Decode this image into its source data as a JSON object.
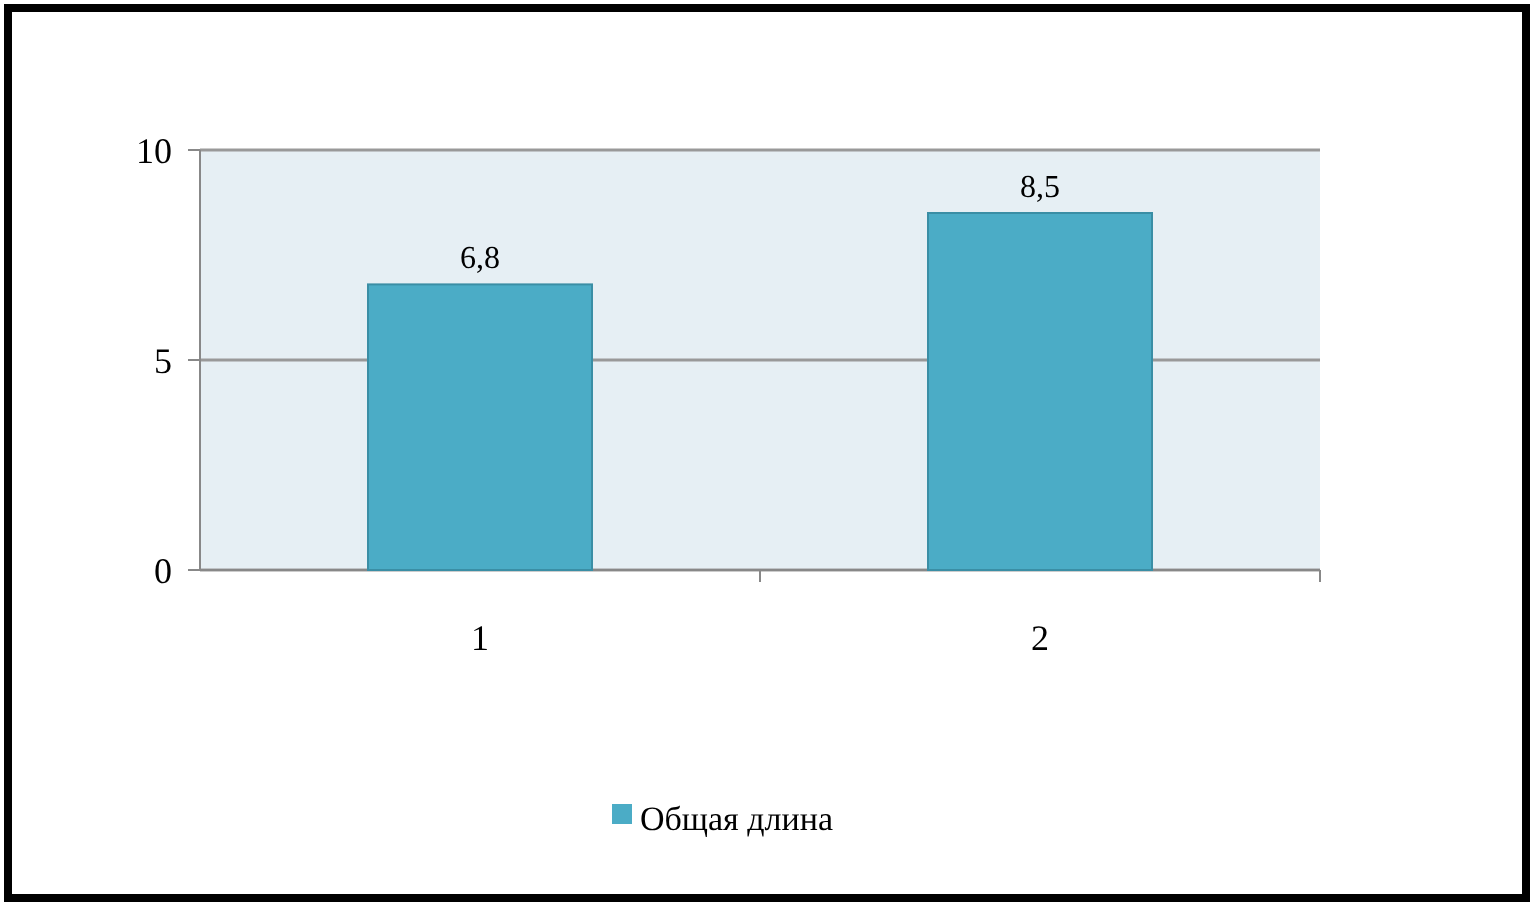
{
  "chart_data": {
    "type": "bar",
    "categories": [
      "1",
      "2"
    ],
    "series": [
      {
        "name": "Общая длина",
        "color": "#4bacc6",
        "values": [
          6.8,
          8.5
        ],
        "value_labels": [
          "6,8",
          "8,5"
        ]
      }
    ],
    "ylim": [
      0,
      10
    ],
    "yticks": [
      0,
      5,
      10
    ],
    "grid": "y",
    "legend": "bottom"
  }
}
